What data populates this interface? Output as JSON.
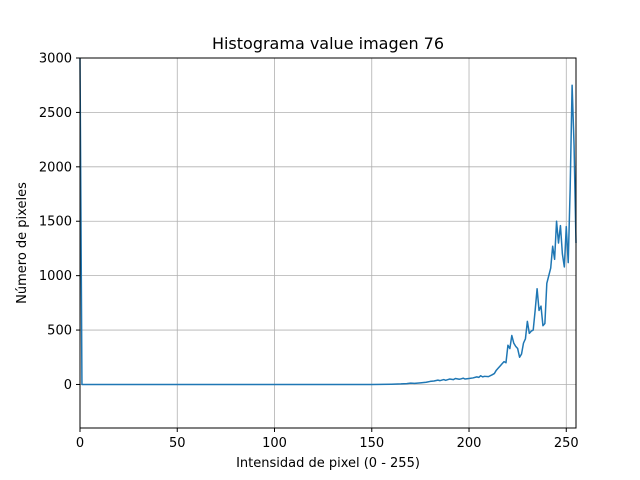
{
  "chart_data": {
    "type": "line",
    "title": "Histograma value imagen 76",
    "xlabel": "Intensidad de pixel (0 - 255)",
    "ylabel": "Número de pixeles",
    "xlim": [
      0,
      255
    ],
    "ylim": [
      -400,
      3000
    ],
    "grid": true,
    "line_color": "#1f77b4",
    "xticks": [
      0,
      50,
      100,
      150,
      200,
      250
    ],
    "yticks": [
      0,
      500,
      1000,
      1500,
      2000,
      2500,
      3000
    ],
    "x": [
      0,
      1,
      2,
      10,
      50,
      100,
      150,
      160,
      165,
      168,
      170,
      172,
      175,
      178,
      180,
      182,
      184,
      185,
      187,
      188,
      190,
      192,
      193,
      195,
      196,
      197,
      198,
      200,
      202,
      204,
      205,
      206,
      207,
      208,
      210,
      212,
      213,
      214,
      215,
      216,
      217,
      218,
      219,
      220,
      221,
      222,
      223,
      224,
      225,
      226,
      227,
      228,
      229,
      230,
      231,
      232,
      233,
      234,
      235,
      236,
      237,
      238,
      239,
      240,
      241,
      242,
      243,
      244,
      245,
      246,
      247,
      248,
      249,
      250,
      251,
      252,
      253,
      254,
      255
    ],
    "y": [
      3000,
      0,
      0,
      0,
      0,
      0,
      0,
      2,
      5,
      8,
      12,
      10,
      15,
      20,
      28,
      32,
      40,
      35,
      45,
      38,
      50,
      45,
      55,
      48,
      52,
      58,
      50,
      55,
      60,
      70,
      65,
      80,
      70,
      75,
      72,
      90,
      100,
      130,
      150,
      170,
      190,
      210,
      200,
      360,
      330,
      450,
      380,
      350,
      330,
      250,
      280,
      380,
      420,
      580,
      470,
      490,
      500,
      680,
      880,
      680,
      720,
      540,
      560,
      930,
      1000,
      1070,
      1270,
      1150,
      1500,
      1300,
      1460,
      1200,
      1080,
      1450,
      1120,
      1800,
      2750,
      2200,
      1300
    ]
  }
}
